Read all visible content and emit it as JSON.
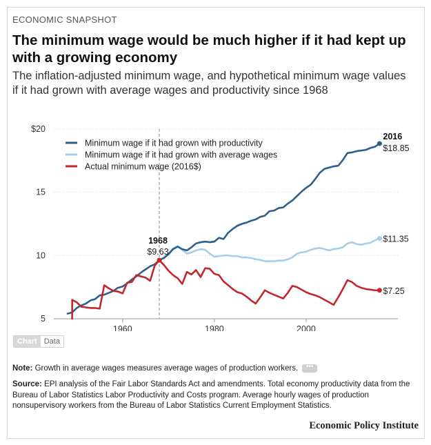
{
  "header": {
    "kicker": "ECONOMIC SNAPSHOT",
    "title": "The minimum wage would be much higher if it had kept up with a growing economy",
    "subtitle": "The inflation-adjusted minimum wage, and hypothetical minimum wage values if it had grown with average wages and productivity since 1968"
  },
  "toggle": {
    "chart_label": "Chart",
    "data_label": "Data"
  },
  "footer": {
    "note_label": "Note:",
    "note_text": " Growth in average wages measures average wages of production workers.",
    "more_label": "•••",
    "source_label": "Source:",
    "source_text": " EPI analysis of the Fair Labor Standards Act and amendments. Total economy productivity data from the Bureau of Labor Statistics Labor Productivity and Costs program. Average hourly wages of production nonsupervisory workers from the Bureau of Labor Statistics Current Employment Statistics.",
    "brand": "Economic Policy Institute"
  },
  "chart_data": {
    "type": "line",
    "title": "",
    "xlabel": "",
    "ylabel": "",
    "xlim": [
      1945,
      2020
    ],
    "ylim": [
      5,
      20
    ],
    "x_ticks": [
      1960,
      1980,
      2000
    ],
    "x_tick_labels": [
      "1960",
      "1980",
      "2000"
    ],
    "y_ticks": [
      5,
      10,
      15,
      20
    ],
    "y_tick_labels": [
      "5",
      "10",
      "15",
      "$20"
    ],
    "grid": true,
    "legend_position": "top-left",
    "reference_line": {
      "x": 1968,
      "label_year": "1968",
      "label_value": "$9.63"
    },
    "series": [
      {
        "name": "Minimum wage if it had grown with productivity",
        "color": "#2d5f8a",
        "end_year_label": "2016",
        "end_value_label": "$18.85",
        "x": [
          1948,
          1949,
          1950,
          1951,
          1952,
          1953,
          1954,
          1955,
          1956,
          1957,
          1958,
          1959,
          1960,
          1961,
          1962,
          1963,
          1964,
          1965,
          1966,
          1967,
          1968,
          1969,
          1970,
          1971,
          1972,
          1973,
          1974,
          1975,
          1976,
          1977,
          1978,
          1979,
          1980,
          1981,
          1982,
          1983,
          1984,
          1985,
          1986,
          1987,
          1988,
          1989,
          1990,
          1991,
          1992,
          1993,
          1994,
          1995,
          1996,
          1997,
          1998,
          1999,
          2000,
          2001,
          2002,
          2003,
          2004,
          2005,
          2006,
          2007,
          2008,
          2009,
          2010,
          2011,
          2012,
          2013,
          2014,
          2015,
          2016
        ],
        "values": [
          5.4,
          5.5,
          5.85,
          6.05,
          6.2,
          6.45,
          6.55,
          6.85,
          6.9,
          7.05,
          7.2,
          7.45,
          7.55,
          7.8,
          8.1,
          8.35,
          8.65,
          8.9,
          9.15,
          9.3,
          9.63,
          9.8,
          10.1,
          10.5,
          10.7,
          10.5,
          10.4,
          10.65,
          10.95,
          11.05,
          11.1,
          11.05,
          11.1,
          11.4,
          11.3,
          11.8,
          12.1,
          12.35,
          12.5,
          12.6,
          12.75,
          12.85,
          13.05,
          13.15,
          13.5,
          13.55,
          13.75,
          13.8,
          14.1,
          14.35,
          14.7,
          15.05,
          15.35,
          15.6,
          16.05,
          16.55,
          16.85,
          16.95,
          17.05,
          17.1,
          17.55,
          18.1,
          18.15,
          18.25,
          18.3,
          18.35,
          18.5,
          18.6,
          18.85
        ]
      },
      {
        "name": "Minimum wage if it had grown with average wages",
        "color": "#a7cdea",
        "end_value_label": "$11.35",
        "x": [
          1968,
          1969,
          1970,
          1971,
          1972,
          1973,
          1974,
          1975,
          1976,
          1977,
          1978,
          1979,
          1980,
          1981,
          1982,
          1983,
          1984,
          1985,
          1986,
          1987,
          1988,
          1989,
          1990,
          1991,
          1992,
          1993,
          1994,
          1995,
          1996,
          1997,
          1998,
          1999,
          2000,
          2001,
          2002,
          2003,
          2004,
          2005,
          2006,
          2007,
          2008,
          2009,
          2010,
          2011,
          2012,
          2013,
          2014,
          2015,
          2016
        ],
        "values": [
          9.63,
          9.85,
          10.15,
          10.55,
          10.75,
          10.45,
          10.15,
          10.25,
          10.4,
          10.5,
          10.45,
          10.15,
          9.9,
          9.95,
          10.0,
          10.0,
          9.95,
          9.95,
          9.85,
          9.85,
          9.8,
          9.7,
          9.65,
          9.55,
          9.55,
          9.55,
          9.6,
          9.6,
          9.7,
          9.85,
          10.15,
          10.25,
          10.3,
          10.45,
          10.55,
          10.6,
          10.5,
          10.4,
          10.5,
          10.55,
          10.65,
          10.95,
          11.05,
          10.9,
          10.85,
          10.95,
          11.0,
          11.2,
          11.35
        ]
      },
      {
        "name": "Actual minimum wage (2016$)",
        "color": "#c1272d",
        "end_value_label": "$7.25",
        "x": [
          1949,
          1949.01,
          1950,
          1951,
          1952,
          1953,
          1954,
          1955,
          1956,
          1957,
          1958,
          1959,
          1960,
          1961,
          1962,
          1963,
          1964,
          1965,
          1966,
          1967,
          1968,
          1969,
          1970,
          1971,
          1972,
          1973,
          1974,
          1975,
          1976,
          1977,
          1978,
          1979,
          1980,
          1981,
          1982,
          1983,
          1984,
          1985,
          1986,
          1987,
          1988,
          1989,
          1990,
          1991,
          1992,
          1993,
          1994,
          1995,
          1996,
          1997,
          1998,
          1999,
          2000,
          2001,
          2002,
          2003,
          2004,
          2005,
          2006,
          2007,
          2008,
          2009,
          2010,
          2011,
          2012,
          2013,
          2014,
          2015,
          2016
        ],
        "values": [
          5.0,
          6.5,
          6.3,
          5.95,
          5.9,
          5.85,
          5.85,
          5.8,
          7.65,
          7.4,
          7.2,
          7.15,
          7.0,
          7.85,
          7.9,
          8.45,
          8.35,
          8.25,
          8.0,
          9.2,
          9.63,
          9.25,
          8.8,
          8.45,
          8.2,
          7.75,
          8.7,
          8.5,
          8.85,
          8.3,
          9.0,
          8.95,
          8.55,
          8.45,
          7.95,
          7.65,
          7.35,
          7.1,
          7.0,
          6.75,
          6.45,
          6.2,
          6.7,
          7.25,
          7.05,
          6.9,
          6.75,
          6.6,
          7.05,
          7.6,
          7.5,
          7.3,
          7.1,
          6.95,
          6.85,
          6.7,
          6.5,
          6.3,
          6.1,
          6.7,
          7.35,
          8.05,
          7.9,
          7.6,
          7.45,
          7.35,
          7.3,
          7.25,
          7.25
        ]
      }
    ]
  }
}
